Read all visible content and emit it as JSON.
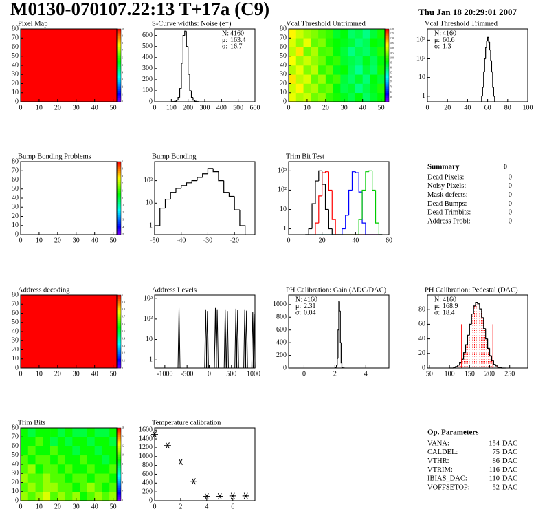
{
  "header": {
    "title": "M0130-070107.22:13 T+17a (C9)",
    "date": "Thu Jan 18 20:29:01 2007"
  },
  "chart_data": [
    {
      "type": "heatmap",
      "title": "Pixel Map",
      "xlim": [
        0,
        52
      ],
      "ylim": [
        0,
        80
      ],
      "xticks": [
        0,
        10,
        20,
        30,
        40,
        50
      ],
      "yticks": [
        0,
        10,
        20,
        30,
        40,
        50,
        60,
        70,
        80
      ],
      "zlim": [
        0,
        10
      ],
      "zticks": [
        0,
        1,
        2,
        3,
        4,
        5,
        6,
        7,
        8,
        9,
        10
      ],
      "cells": [
        [
          10
        ]
      ]
    },
    {
      "type": "histogram",
      "title": "S-Curve widths: Noise (e⁻)",
      "xlim": [
        0,
        600
      ],
      "ylim": [
        0,
        660
      ],
      "xticks": [
        0,
        100,
        200,
        300,
        400,
        500,
        600
      ],
      "yticks": [
        0,
        100,
        200,
        300,
        400,
        500,
        600
      ],
      "bins": [
        100,
        110,
        120,
        130,
        140,
        150,
        160,
        170,
        180,
        190,
        200,
        210,
        220,
        230,
        240,
        250,
        260
      ],
      "series": [
        {
          "color": "#000000",
          "values": [
            0,
            2,
            5,
            15,
            40,
            120,
            350,
            600,
            640,
            500,
            250,
            100,
            40,
            15,
            5,
            2
          ]
        }
      ],
      "stats_corner": "top-right",
      "stats": [
        {
          "key": "N:",
          "value": 4160
        },
        {
          "key": "μ:",
          "value": 163.4
        },
        {
          "key": "σ:",
          "value": 16.7
        }
      ]
    },
    {
      "type": "heatmap",
      "title": "Vcal Threshold Untrimmed",
      "xlim": [
        0,
        52
      ],
      "ylim": [
        0,
        80
      ],
      "xticks": [
        0,
        10,
        20,
        30,
        40,
        50
      ],
      "yticks": [
        0,
        10,
        20,
        30,
        40,
        50,
        60,
        70,
        80
      ],
      "zlim": [
        55,
        130
      ],
      "zticks": [
        60,
        65,
        70,
        75,
        80,
        85,
        90,
        95,
        100,
        105,
        110,
        115,
        120,
        125,
        130
      ],
      "cells": [
        [
          112,
          108,
          110,
          104,
          106,
          100,
          98,
          95,
          92,
          96,
          90,
          94,
          97
        ],
        [
          110,
          114,
          106,
          108,
          102,
          104,
          96,
          92,
          94,
          88,
          92,
          95,
          99
        ],
        [
          115,
          109,
          111,
          103,
          107,
          99,
          101,
          93,
          90,
          94,
          89,
          96,
          93
        ],
        [
          108,
          112,
          105,
          109,
          100,
          103,
          95,
          97,
          91,
          87,
          93,
          90,
          98
        ],
        [
          113,
          107,
          110,
          106,
          104,
          98,
          100,
          94,
          92,
          90,
          95,
          91,
          96
        ],
        [
          109,
          115,
          104,
          108,
          101,
          102,
          96,
          93,
          88,
          92,
          90,
          94,
          99
        ],
        [
          111,
          106,
          112,
          103,
          105,
          99,
          97,
          95,
          93,
          89,
          91,
          97,
          95
        ],
        [
          114,
          110,
          107,
          105,
          102,
          100,
          94,
          96,
          90,
          92,
          88,
          93,
          98
        ]
      ]
    },
    {
      "type": "histogram",
      "title": "Vcal Threshold Trimmed",
      "xlim": [
        0,
        100
      ],
      "ylim": [
        0.5,
        4000
      ],
      "log_y": true,
      "xticks": [
        0,
        20,
        40,
        60,
        80,
        100
      ],
      "yticks": [
        1,
        10,
        {
          "value": 100,
          "label": "10²"
        },
        {
          "value": 1000,
          "label": "10³"
        }
      ],
      "bins": [
        54,
        55,
        56,
        57,
        58,
        59,
        60,
        61,
        62,
        63,
        64,
        65,
        66,
        67
      ],
      "series": [
        {
          "color": "#000000",
          "values": [
            1,
            3,
            20,
            100,
            400,
            900,
            1400,
            800,
            300,
            80,
            20,
            3,
            1
          ]
        }
      ],
      "stats_corner": "top-left",
      "stats": [
        {
          "key": "N:",
          "value": 4160
        },
        {
          "key": "μ:",
          "value": 60.6
        },
        {
          "key": "σ:",
          "value": 1.3
        }
      ]
    },
    {
      "type": "heatmap",
      "title": "Bump Bonding Problems",
      "xlim": [
        0,
        52
      ],
      "ylim": [
        0,
        80
      ],
      "xticks": [
        0,
        10,
        20,
        30,
        40,
        50
      ],
      "yticks": [
        0,
        10,
        20,
        30,
        40,
        50,
        60,
        70,
        80
      ],
      "zlim": [
        -5,
        5
      ],
      "zticks": [
        -5,
        -4,
        -3,
        -2,
        -1,
        0,
        1,
        2,
        3,
        4,
        5
      ]
    },
    {
      "type": "histogram",
      "title": "Bump Bonding",
      "xlim": [
        -50,
        -12.3
      ],
      "ylim": [
        0.4,
        700
      ],
      "log_y": true,
      "xticks": [
        -50,
        -40,
        -30,
        -20
      ],
      "yticks": [
        1,
        10,
        {
          "value": 100,
          "label": "10²"
        }
      ],
      "bins": [
        -50,
        -48,
        -46,
        -44,
        -42,
        -40,
        -38,
        -36,
        -34,
        -32,
        -30,
        -28,
        -26,
        -24,
        -22,
        -20,
        -18,
        -16
      ],
      "series": [
        {
          "color": "#000000",
          "values": [
            1,
            6,
            15,
            30,
            45,
            60,
            80,
            100,
            140,
            200,
            350,
            250,
            100,
            30,
            20,
            5,
            1
          ]
        }
      ]
    },
    {
      "type": "histogram",
      "title": "Trim Bit Test",
      "xlim": [
        0,
        60
      ],
      "ylim": [
        0.5,
        3000
      ],
      "log_y": true,
      "xticks": [
        0,
        20,
        40,
        60
      ],
      "yticks": [
        1,
        10,
        {
          "value": 100,
          "label": "10²"
        },
        {
          "value": 1000,
          "label": "10³"
        }
      ],
      "bins": [
        10,
        12,
        14,
        16,
        18,
        20,
        22,
        24,
        26,
        28,
        30,
        32,
        34,
        36,
        38,
        40,
        42,
        44,
        46,
        48,
        50,
        52,
        54,
        56
      ],
      "series": [
        {
          "color": "#000000",
          "values": [
            0,
            1,
            20,
            300,
            1000,
            200,
            10,
            1,
            0,
            0,
            0,
            0,
            0,
            0,
            0,
            0,
            0,
            0,
            0,
            0,
            0,
            0,
            0
          ]
        },
        {
          "color": "#ff0000",
          "values": [
            0,
            0,
            0,
            2,
            50,
            800,
            900,
            100,
            3,
            0,
            0,
            0,
            0,
            0,
            0,
            0,
            0,
            0,
            0,
            0,
            0,
            0,
            0
          ]
        },
        {
          "color": "#0000ff",
          "values": [
            0,
            0,
            0,
            0,
            0,
            0,
            0,
            0,
            0,
            0,
            0,
            1,
            5,
            100,
            900,
            800,
            80,
            2,
            0,
            0,
            0,
            0,
            0
          ]
        },
        {
          "color": "#00cc00",
          "values": [
            0,
            0,
            0,
            0,
            0,
            0,
            0,
            0,
            0,
            0,
            0,
            0,
            0,
            0,
            0,
            0,
            3,
            100,
            900,
            1000,
            100,
            2,
            0
          ]
        }
      ]
    },
    {
      "type": "heatmap",
      "title": "Address decoding",
      "xlim": [
        0,
        52
      ],
      "ylim": [
        0,
        80
      ],
      "xticks": [
        0,
        10,
        20,
        30,
        40,
        50
      ],
      "yticks": [
        0,
        10,
        20,
        30,
        40,
        50,
        60,
        70,
        80
      ],
      "zlim": [
        0,
        1
      ],
      "zticks": [
        0,
        0.1,
        0.2,
        0.3,
        0.4,
        0.5,
        0.6,
        0.7,
        0.8,
        0.9,
        1
      ],
      "cells": [
        [
          1
        ]
      ]
    },
    {
      "type": "impulse",
      "title": "Address Levels",
      "xlim": [
        -1230,
        1030
      ],
      "ylim": [
        0.4,
        1500
      ],
      "log_y": true,
      "xticks": [
        -1000,
        -500,
        0,
        500,
        1000
      ],
      "yticks": [
        1,
        10,
        {
          "value": 100,
          "label": "10²"
        },
        {
          "value": 1000,
          "label": "10³"
        }
      ],
      "color": "#000000",
      "x": [
        -680,
        -80,
        -40,
        140,
        180,
        360,
        410,
        600,
        640,
        800,
        840,
        980,
        1010
      ],
      "values": [
        350,
        300,
        250,
        350,
        300,
        300,
        250,
        320,
        280,
        300,
        260,
        220,
        180
      ]
    },
    {
      "type": "histogram",
      "title": "PH Calibration: Gain (ADC/DAC)",
      "xlim": [
        -1,
        5.5
      ],
      "ylim": [
        0,
        1150
      ],
      "xticks": [
        0,
        2,
        4
      ],
      "yticks": [
        0,
        200,
        400,
        600,
        800,
        1000
      ],
      "bins": [
        2,
        2.05,
        2.1,
        2.15,
        2.2,
        2.25,
        2.3,
        2.35,
        2.4,
        2.45,
        2.5,
        2.55,
        2.6
      ],
      "series": [
        {
          "color": "#000000",
          "values": [
            2,
            10,
            40,
            150,
            600,
            1050,
            900,
            400,
            80,
            10,
            3,
            1
          ]
        }
      ],
      "stats_corner": "top-left",
      "stats": [
        {
          "key": "N:",
          "value": 4160
        },
        {
          "key": "μ:",
          "value": 2.31
        },
        {
          "key": "σ:",
          "value": 0.04
        }
      ]
    },
    {
      "type": "histogram",
      "title": "PH Calibration: Pedestal (DAC)",
      "xlim": [
        45,
        295
      ],
      "ylim": [
        0,
        100
      ],
      "xticks": [
        50,
        100,
        150,
        200,
        250
      ],
      "yticks": [
        0,
        20,
        40,
        60,
        80
      ],
      "bins": [
        100,
        105,
        110,
        115,
        120,
        125,
        130,
        135,
        140,
        145,
        150,
        155,
        160,
        165,
        170,
        175,
        180,
        185,
        190,
        195,
        200,
        205,
        210,
        215,
        220,
        225,
        230,
        235,
        240
      ],
      "series": [
        {
          "color": "#000000",
          "fill_color": "#ff0000",
          "values": [
            0,
            0,
            1,
            2,
            4,
            7,
            12,
            21,
            32,
            45,
            60,
            74,
            85,
            90,
            88,
            81,
            69,
            54,
            40,
            27,
            17,
            10,
            5,
            3,
            1,
            1,
            0,
            0
          ]
        }
      ],
      "cut_lines": {
        "x": [
          130,
          208
        ],
        "y": 60,
        "color": "#ff0000"
      },
      "stats_corner": "top-left",
      "stats": [
        {
          "key": "N:",
          "value": 4160
        },
        {
          "key": "μ:",
          "value": 168.9,
          "color": "#ff0000"
        },
        {
          "key": "σ:",
          "value": 18.4,
          "color": "#ff0000"
        }
      ]
    },
    {
      "type": "heatmap",
      "title": "Trim Bits",
      "xlim": [
        0,
        52
      ],
      "ylim": [
        0,
        80
      ],
      "xticks": [
        0,
        10,
        20,
        30,
        40,
        50
      ],
      "yticks": [
        0,
        10,
        20,
        30,
        40,
        50,
        60,
        70,
        80
      ],
      "zlim": [
        0,
        16
      ],
      "zticks": [
        0,
        2,
        4,
        6,
        8,
        10,
        12,
        14,
        16
      ],
      "cells": [
        [
          11,
          10,
          11,
          12,
          10,
          11,
          10,
          11,
          9,
          10,
          11,
          10,
          11
        ],
        [
          10,
          11,
          10,
          11,
          11,
          10,
          10,
          9,
          10,
          11,
          10,
          9,
          10
        ],
        [
          11,
          10,
          10,
          11,
          10,
          10,
          9,
          10,
          10,
          9,
          10,
          10,
          9
        ],
        [
          10,
          11,
          9,
          10,
          10,
          9,
          10,
          9,
          9,
          10,
          9,
          9,
          10
        ],
        [
          10,
          9,
          10,
          10,
          9,
          10,
          9,
          9,
          10,
          9,
          9,
          8,
          9
        ],
        [
          9,
          10,
          9,
          9,
          10,
          9,
          9,
          8,
          9,
          9,
          8,
          9,
          9
        ],
        [
          9,
          9,
          10,
          9,
          8,
          9,
          8,
          9,
          9,
          8,
          9,
          9,
          8
        ],
        [
          9,
          8,
          9,
          9,
          9,
          8,
          9,
          8,
          8,
          9,
          8,
          8,
          9
        ]
      ]
    },
    {
      "type": "scatter",
      "title": "Temperature calibration",
      "xlim": [
        0,
        7.7
      ],
      "ylim": [
        0,
        1650
      ],
      "xticks": [
        0,
        2,
        4,
        6
      ],
      "yticks": [
        0,
        200,
        400,
        600,
        800,
        1000,
        1200,
        1400,
        1600
      ],
      "color": "#000000",
      "x": [
        0,
        1,
        2,
        3,
        4,
        5,
        6,
        7
      ],
      "values": [
        1500,
        1250,
        880,
        440,
        100,
        100,
        110,
        110
      ]
    }
  ],
  "summary": {
    "title": "Summary",
    "value": 0,
    "rows": [
      {
        "name": "Dead Pixels:",
        "value": 0
      },
      {
        "name": "Noisy Pixels:",
        "value": 0
      },
      {
        "name": "Mask defects:",
        "value": 0
      },
      {
        "name": "Dead Bumps:",
        "value": 0
      },
      {
        "name": "Dead Trimbits:",
        "value": 0
      },
      {
        "name": "Address Probl:",
        "value": 0
      }
    ]
  },
  "op_parameters": {
    "title": "Op. Parameters",
    "unit": "DAC",
    "rows": [
      {
        "name": "VANA:",
        "value": 154
      },
      {
        "name": "CALDEL:",
        "value": 75
      },
      {
        "name": "VTHR:",
        "value": 86
      },
      {
        "name": "VTRIM:",
        "value": 116
      },
      {
        "name": "IBIAS_DAC:",
        "value": 110
      },
      {
        "name": "VOFFSETOP:",
        "value": 52
      }
    ]
  }
}
